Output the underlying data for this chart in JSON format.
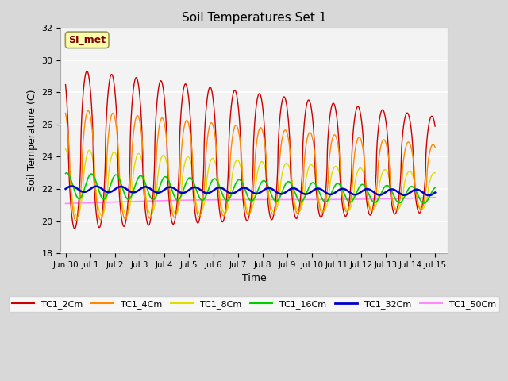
{
  "title": "Soil Temperatures Set 1",
  "xlabel": "Time",
  "ylabel": "Soil Temperature (C)",
  "ylim": [
    18,
    32
  ],
  "xlim_days": [
    -0.2,
    15.5
  ],
  "annotation_text": "SI_met",
  "fig_bg_color": "#d8d8d8",
  "plot_bg_color": "#e8e8e8",
  "series": {
    "TC1_2Cm": {
      "color": "#cc0000",
      "lw": 1.0
    },
    "TC1_4Cm": {
      "color": "#ff8800",
      "lw": 1.0
    },
    "TC1_8Cm": {
      "color": "#dddd00",
      "lw": 1.0
    },
    "TC1_16Cm": {
      "color": "#00cc00",
      "lw": 1.2
    },
    "TC1_32Cm": {
      "color": "#0000cc",
      "lw": 1.8
    },
    "TC1_50Cm": {
      "color": "#ff88ff",
      "lw": 1.2
    }
  },
  "legend_labels": [
    "TC1_2Cm",
    "TC1_4Cm",
    "TC1_8Cm",
    "TC1_16Cm",
    "TC1_32Cm",
    "TC1_50Cm"
  ]
}
